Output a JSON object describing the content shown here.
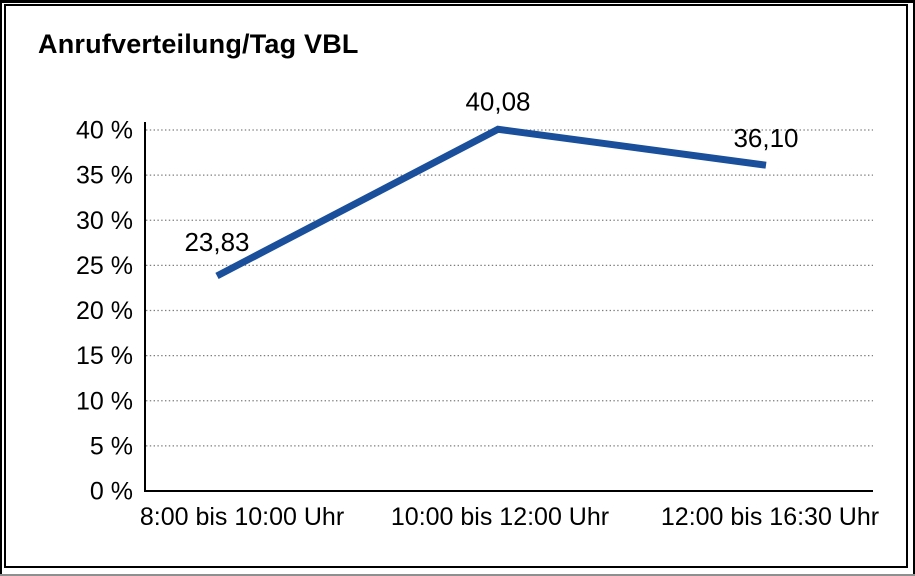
{
  "chart_data": {
    "type": "line",
    "title": "Anrufverteilung/Tag VBL",
    "categories": [
      "8:00 bis 10:00 Uhr",
      "10:00 bis 12:00 Uhr",
      "12:00 bis 16:30 Uhr"
    ],
    "values": [
      23.83,
      40.08,
      36.1
    ],
    "point_labels": [
      "23,83",
      "40,08",
      "36,10"
    ],
    "ytick_values": [
      0,
      5,
      10,
      15,
      20,
      25,
      30,
      35,
      40
    ],
    "ytick_labels": [
      "0 %",
      "5 %",
      "10 %",
      "15 %",
      "20 %",
      "25 %",
      "30 %",
      "35 %",
      "40 %"
    ],
    "ylim": [
      0,
      40
    ],
    "xlabel": "",
    "ylabel": "",
    "grid": "horizontal-dotted",
    "legend": "none",
    "colors": {
      "line": "#1A4F9C",
      "axis": "#000000",
      "grid": "#7D7D7D",
      "text": "#000000",
      "background": "#FFFFFF"
    }
  }
}
